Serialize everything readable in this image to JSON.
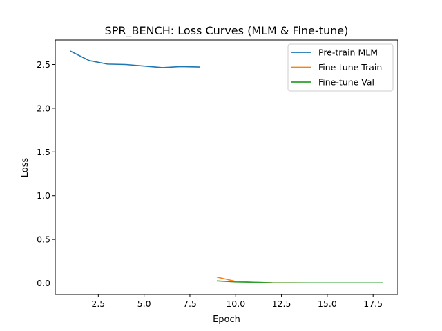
{
  "chart_data": {
    "type": "line",
    "title": "SPR_BENCH: Loss Curves (MLM & Fine-tune)",
    "xlabel": "Epoch",
    "ylabel": "Loss",
    "xlim": [
      0.15,
      18.85
    ],
    "ylim": [
      -0.13,
      2.78
    ],
    "xticks": [
      2.5,
      5.0,
      7.5,
      10.0,
      12.5,
      15.0,
      17.5
    ],
    "xtick_labels": [
      "2.5",
      "5.0",
      "7.5",
      "10.0",
      "12.5",
      "15.0",
      "17.5"
    ],
    "yticks": [
      0.0,
      0.5,
      1.0,
      1.5,
      2.0,
      2.5
    ],
    "ytick_labels": [
      "0.0",
      "0.5",
      "1.0",
      "1.5",
      "2.0",
      "2.5"
    ],
    "grid": false,
    "legend_position": "top-right",
    "series": [
      {
        "name": "Pre-train MLM",
        "color": "#1f77b4",
        "x": [
          1,
          2,
          3,
          4,
          5,
          6,
          7,
          8
        ],
        "y": [
          2.65,
          2.545,
          2.505,
          2.5,
          2.483,
          2.465,
          2.477,
          2.472
        ]
      },
      {
        "name": "Fine-tune Train",
        "color": "#ff7f0e",
        "x": [
          9,
          10,
          11,
          12,
          13,
          14,
          15,
          16,
          17,
          18
        ],
        "y": [
          0.068,
          0.02,
          0.01,
          0.004,
          0.003,
          0.002,
          0.002,
          0.002,
          0.002,
          0.002
        ]
      },
      {
        "name": "Fine-tune Val",
        "color": "#2ca02c",
        "x": [
          9,
          10,
          11,
          12,
          13,
          14,
          15,
          16,
          17,
          18
        ],
        "y": [
          0.025,
          0.013,
          0.009,
          0.003,
          0.002,
          0.002,
          0.002,
          0.002,
          0.002,
          0.002
        ]
      }
    ]
  }
}
